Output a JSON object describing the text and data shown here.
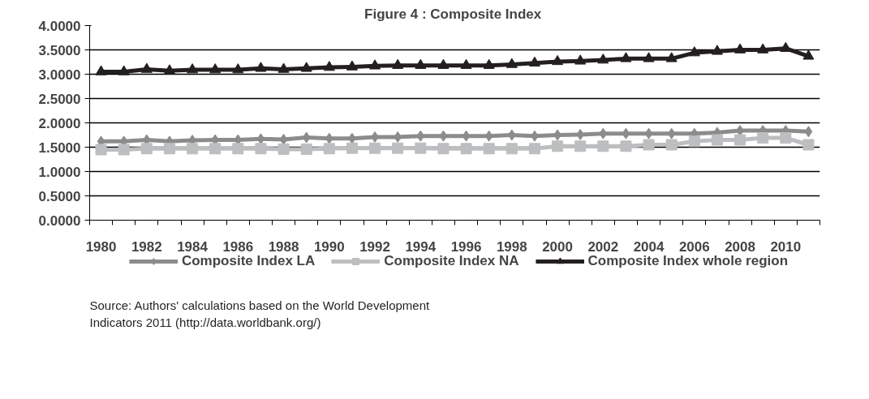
{
  "chart_data": {
    "type": "line",
    "title": "Figure 4 :  Composite Index",
    "categories": [
      "1980",
      null,
      "1982",
      null,
      "1984",
      null,
      "1986",
      null,
      "1988",
      null,
      "1990",
      null,
      "1992",
      null,
      "1994",
      null,
      "1996",
      null,
      "1998",
      null,
      "2000",
      null,
      "2002",
      null,
      "2004",
      null,
      "2006",
      null,
      "2008",
      null,
      "2010",
      null
    ],
    "series": [
      {
        "name": "Composite Index LA",
        "color": "#8c8c8e",
        "marker": "diamond",
        "values": [
          1.62,
          1.62,
          1.65,
          1.62,
          1.64,
          1.65,
          1.65,
          1.67,
          1.66,
          1.7,
          1.68,
          1.68,
          1.71,
          1.71,
          1.73,
          1.73,
          1.73,
          1.73,
          1.75,
          1.73,
          1.75,
          1.76,
          1.78,
          1.78,
          1.78,
          1.78,
          1.78,
          1.8,
          1.84,
          1.84,
          1.84,
          1.82
        ]
      },
      {
        "name": "Composite Index NA",
        "color": "#bdbec0",
        "marker": "square",
        "values": [
          1.45,
          1.45,
          1.47,
          1.47,
          1.47,
          1.47,
          1.47,
          1.47,
          1.46,
          1.46,
          1.47,
          1.48,
          1.48,
          1.48,
          1.48,
          1.47,
          1.47,
          1.47,
          1.47,
          1.47,
          1.52,
          1.52,
          1.52,
          1.52,
          1.55,
          1.55,
          1.62,
          1.65,
          1.65,
          1.69,
          1.69,
          1.55
        ]
      },
      {
        "name": "Composite Index whole region",
        "color": "#231f20",
        "marker": "triangle",
        "values": [
          3.05,
          3.05,
          3.1,
          3.07,
          3.09,
          3.09,
          3.09,
          3.12,
          3.1,
          3.12,
          3.14,
          3.15,
          3.17,
          3.18,
          3.18,
          3.18,
          3.18,
          3.18,
          3.2,
          3.23,
          3.26,
          3.27,
          3.29,
          3.32,
          3.32,
          3.32,
          3.44,
          3.47,
          3.5,
          3.5,
          3.53,
          3.37
        ]
      }
    ],
    "ylim": [
      0,
      4
    ],
    "yticks": [
      {
        "value": 0,
        "label": "0.0000"
      },
      {
        "value": 0.5,
        "label": "0.5000"
      },
      {
        "value": 1,
        "label": "1.0000"
      },
      {
        "value": 1.5,
        "label": "1.5000"
      },
      {
        "value": 2,
        "label": "2.0000"
      },
      {
        "value": 2.5,
        "label": "2.5000"
      },
      {
        "value": 3,
        "label": "3.0000"
      },
      {
        "value": 3.5,
        "label": "3.5000"
      },
      {
        "value": 4,
        "label": "4.0000"
      }
    ],
    "grid": "y",
    "legend": "bottom",
    "line_style": "solid",
    "annotations": [
      "Source: Authors' calculations based on the World Development Indicators 2011  (http://data.worldbank.org/)"
    ]
  }
}
